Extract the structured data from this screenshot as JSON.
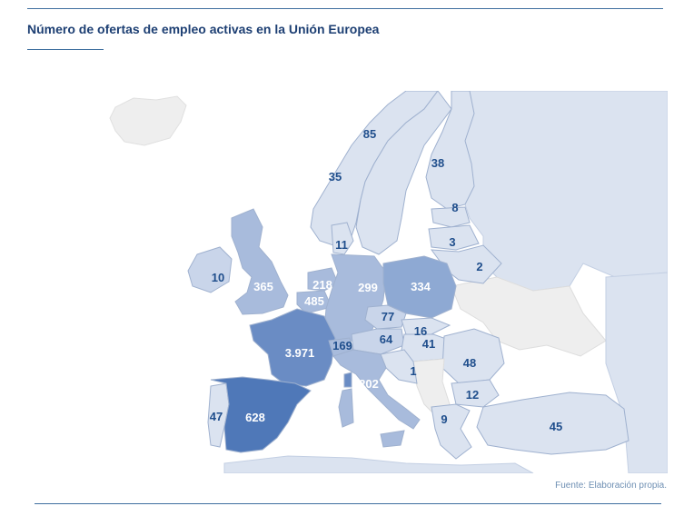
{
  "title": "Número de ofertas de empleo activas en la Unión Europea",
  "source": "Fuente: Elaboración propia.",
  "colors": {
    "water": "#ffffff",
    "non_eu": "#eeeeee",
    "low": "#dbe3f0",
    "mid_low": "#c9d5ea",
    "mid": "#a8bbdc",
    "mid_high": "#8ea9d3",
    "high": "#6a8cc4",
    "label_dark": "#1f4e8c",
    "label_light": "#ffffff",
    "border": "#9fb1cf"
  },
  "countries": [
    {
      "id": "norway",
      "value": "85"
    },
    {
      "id": "sweden",
      "value": "35"
    },
    {
      "id": "finland",
      "value": "38"
    },
    {
      "id": "estonia",
      "value": "8"
    },
    {
      "id": "latvia",
      "value": "3"
    },
    {
      "id": "lithuania",
      "value": "2"
    },
    {
      "id": "denmark",
      "value": "11"
    },
    {
      "id": "ireland",
      "value": "10"
    },
    {
      "id": "united-kingdom",
      "value": "365"
    },
    {
      "id": "netherlands",
      "value": "218"
    },
    {
      "id": "belgium",
      "value": "485"
    },
    {
      "id": "germany",
      "value": "299"
    },
    {
      "id": "poland",
      "value": "334"
    },
    {
      "id": "czechia",
      "value": "77"
    },
    {
      "id": "slovakia",
      "value": "16"
    },
    {
      "id": "austria",
      "value": "64"
    },
    {
      "id": "hungary",
      "value": "41"
    },
    {
      "id": "france",
      "value": "3.971"
    },
    {
      "id": "switzerland",
      "value": "169"
    },
    {
      "id": "italy",
      "value": "202"
    },
    {
      "id": "croatia",
      "value": "1"
    },
    {
      "id": "romania",
      "value": "48"
    },
    {
      "id": "bulgaria",
      "value": "12"
    },
    {
      "id": "greece",
      "value": "9"
    },
    {
      "id": "turkey",
      "value": "45"
    },
    {
      "id": "portugal",
      "value": "47"
    },
    {
      "id": "spain",
      "value": "628"
    }
  ]
}
